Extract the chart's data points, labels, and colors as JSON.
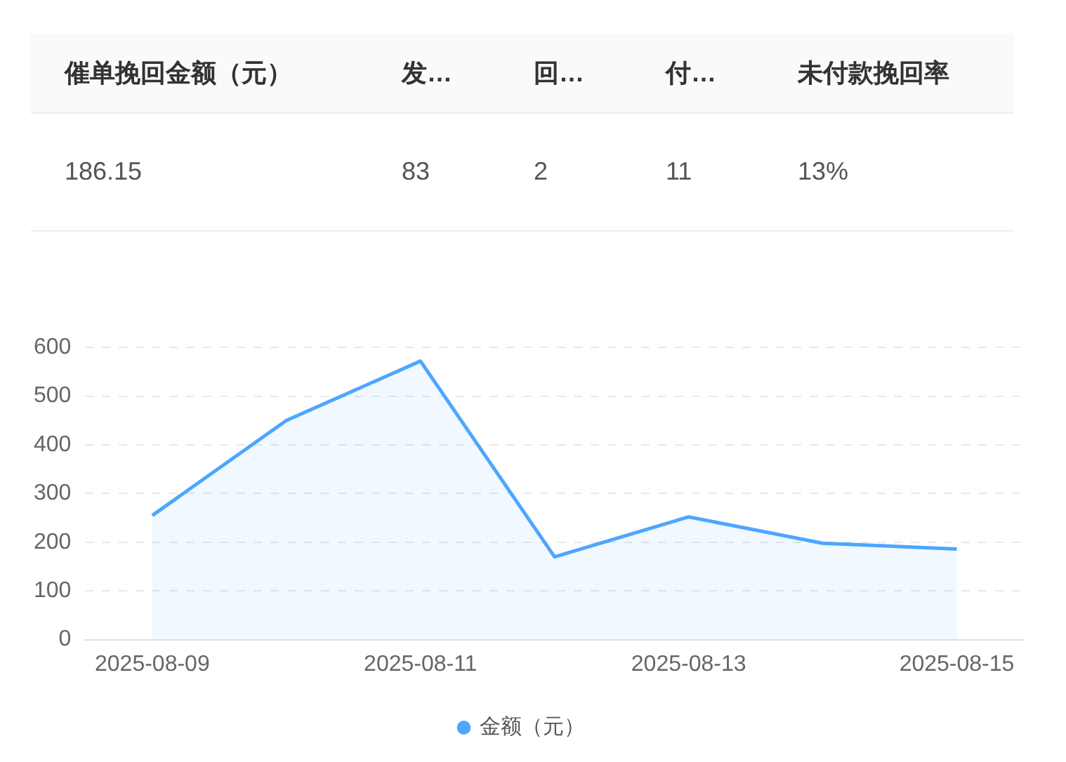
{
  "chart_data": [
    {
      "type": "other",
      "categories": [
        "催单挽回金额（元）",
        "发…",
        "回…",
        "付…",
        "未付款挽回率"
      ],
      "value_labels": [
        "186.15",
        "83",
        "2",
        "11",
        "13%"
      ]
    },
    {
      "type": "area",
      "categories": [
        "2025-08-09",
        null,
        "2025-08-11",
        null,
        "2025-08-13",
        null,
        "2025-08-15"
      ],
      "series": [
        {
          "name": "金额（元）",
          "color": "#4da6ff",
          "values": [
            255,
            450,
            572,
            170,
            252,
            198,
            186
          ]
        }
      ],
      "ylim": [
        0,
        600
      ],
      "yticks": [
        0,
        100,
        200,
        300,
        400,
        500,
        600
      ],
      "grid": "y",
      "legend": "bottom",
      "marker": "none",
      "line_style": "solid"
    }
  ]
}
